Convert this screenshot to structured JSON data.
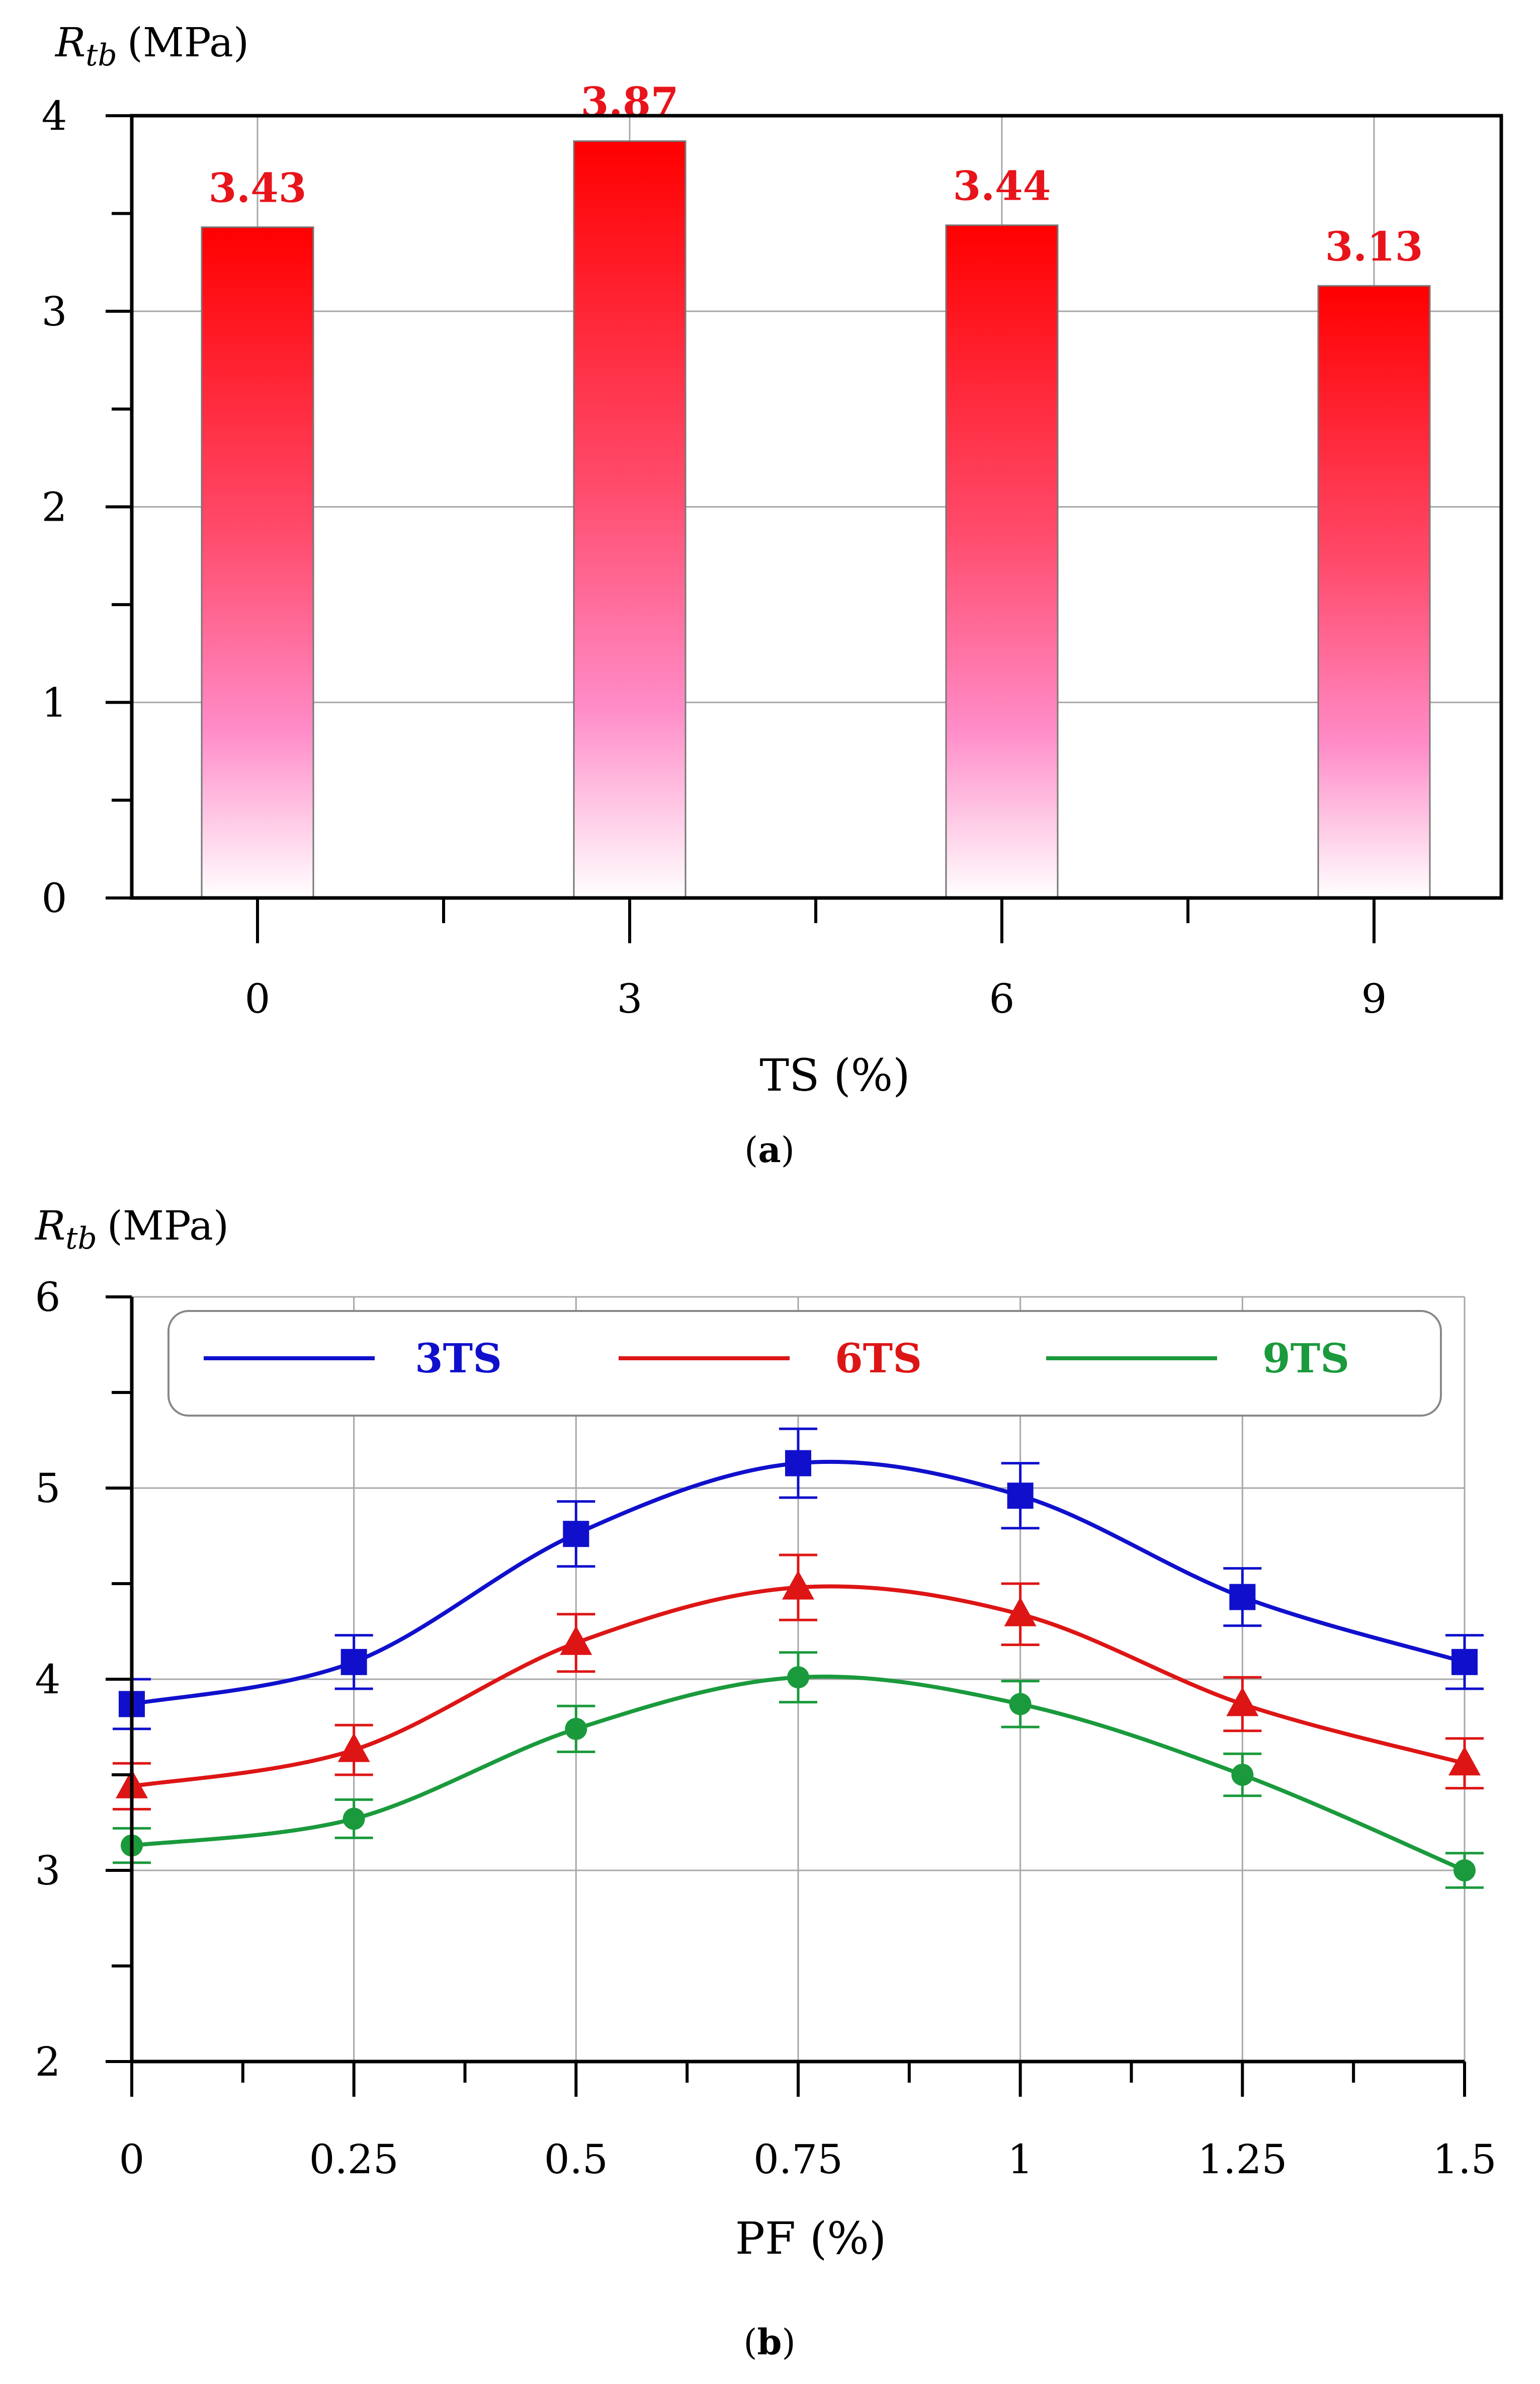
{
  "chart_data": [
    {
      "type": "bar",
      "panel_label": "a",
      "ylabel_symbol": "R",
      "ylabel_sub": "tb",
      "ylabel_unit": "(MPa)",
      "xlabel": "TS (%)",
      "categories": [
        "0",
        "3",
        "6",
        "9"
      ],
      "values": [
        3.43,
        3.87,
        3.44,
        3.13
      ],
      "value_labels": [
        "3.43",
        "3.87",
        "3.44",
        "3.13"
      ],
      "ylim": [
        0,
        4
      ],
      "yticks": [
        0,
        1,
        2,
        3,
        4
      ],
      "grid": true,
      "colors": {
        "bar_top": "#ff0000",
        "bar_mid": "#ff88c8",
        "bar_bottom": "#ffffff",
        "label": "#e8141b"
      }
    },
    {
      "type": "line",
      "panel_label": "b",
      "ylabel_symbol": "R",
      "ylabel_sub": "tb",
      "ylabel_unit": "(MPa)",
      "xlabel": "PF (%)",
      "x": [
        0,
        0.25,
        0.5,
        0.75,
        1,
        1.25,
        1.5
      ],
      "xticklabels": [
        "0",
        "0.25",
        "0.5",
        "0.75",
        "1",
        "1.25",
        "1.5"
      ],
      "ylim": [
        2,
        6
      ],
      "yticks": [
        2,
        3,
        4,
        5,
        6
      ],
      "grid": true,
      "legend_position": "top",
      "series": [
        {
          "name": "3TS",
          "marker": "square",
          "color": "#1010cc",
          "values": [
            3.87,
            4.09,
            4.76,
            5.13,
            4.96,
            4.43,
            4.09
          ],
          "errors": [
            0.13,
            0.14,
            0.17,
            0.18,
            0.17,
            0.15,
            0.14
          ]
        },
        {
          "name": "6TS",
          "marker": "triangle",
          "color": "#dd1515",
          "values": [
            3.44,
            3.63,
            4.19,
            4.48,
            4.34,
            3.87,
            3.56
          ],
          "errors": [
            0.12,
            0.13,
            0.15,
            0.17,
            0.16,
            0.14,
            0.13
          ]
        },
        {
          "name": "9TS",
          "marker": "circle",
          "color": "#1a9a3c",
          "values": [
            3.13,
            3.27,
            3.74,
            4.01,
            3.87,
            3.5,
            3.0
          ],
          "errors": [
            0.09,
            0.1,
            0.12,
            0.13,
            0.12,
            0.11,
            0.09
          ]
        }
      ]
    }
  ]
}
